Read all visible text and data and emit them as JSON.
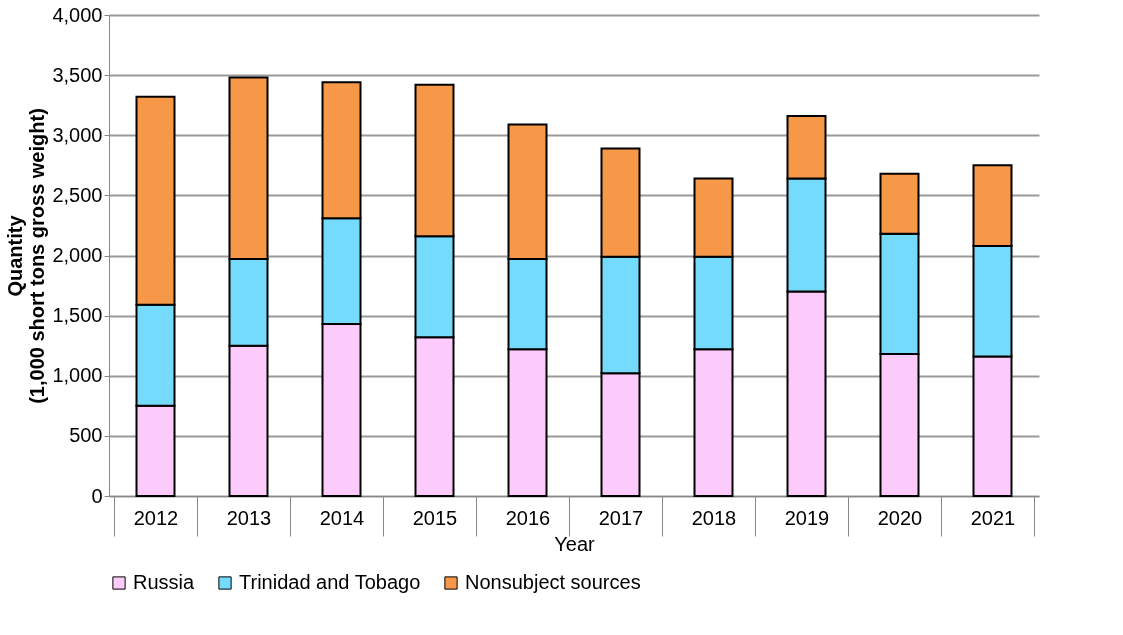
{
  "chart_data": {
    "type": "bar",
    "stacked": true,
    "xlabel": "Year",
    "ylabel": "Quantity\n(1,000 short tons gross weight)",
    "categories": [
      "2012",
      "2013",
      "2014",
      "2015",
      "2016",
      "2017",
      "2018",
      "2019",
      "2020",
      "2021"
    ],
    "series": [
      {
        "name": "Russia",
        "color": "#fccbfc",
        "values": [
          750,
          1250,
          1430,
          1320,
          1220,
          1020,
          1220,
          1700,
          1180,
          1160
        ]
      },
      {
        "name": "Trinidad and Tobago",
        "color": "#75dbfd",
        "values": [
          840,
          720,
          880,
          840,
          750,
          970,
          770,
          940,
          1000,
          920
        ]
      },
      {
        "name": "Nonsubject sources",
        "color": "#f79849",
        "values": [
          1730,
          1510,
          1130,
          1260,
          1120,
          900,
          650,
          520,
          500,
          670
        ]
      }
    ],
    "ylim": [
      0,
      4000
    ],
    "yticks": [
      0,
      {
        "value": 500,
        "label": "500"
      },
      {
        "value": 1000,
        "label": "1,000"
      },
      {
        "value": 1500,
        "label": "1,500"
      },
      {
        "value": 2000,
        "label": "2,000"
      },
      {
        "value": 2500,
        "label": "2,500"
      },
      {
        "value": 3000,
        "label": "3,000"
      },
      {
        "value": 3500,
        "label": "3,500"
      },
      {
        "value": 4000,
        "label": "4,000"
      }
    ],
    "grid": "y",
    "legend": "bottom"
  }
}
